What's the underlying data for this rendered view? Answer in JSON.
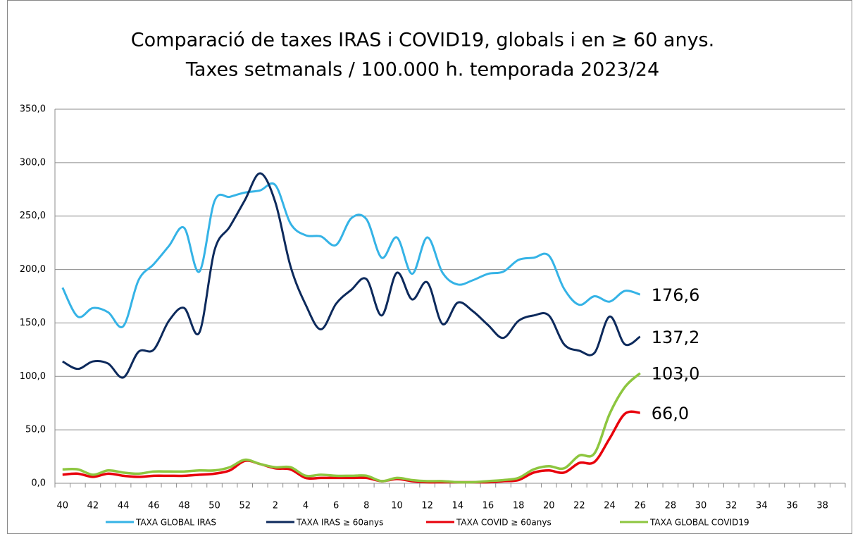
{
  "chart_data": {
    "type": "line",
    "title": "Comparació de taxes IRAS i COVID19, globals i en ≥ 60 anys.",
    "subtitle": "Taxes setmanals / 100.000 h. temporada 2023/24",
    "categories": [
      "40",
      null,
      "42",
      null,
      "44",
      null,
      "46",
      null,
      "48",
      null,
      "50",
      null,
      "52",
      null,
      "2",
      null,
      "4",
      null,
      "6",
      null,
      "8",
      null,
      "10",
      null,
      "12",
      null,
      "14",
      null,
      "16",
      null,
      "18",
      null,
      "20",
      null,
      "22",
      null,
      "24",
      null,
      "26",
      null,
      "28",
      null,
      "30",
      null,
      "32",
      null,
      "34",
      null,
      "36",
      null,
      "38",
      null
    ],
    "ylim": [
      0,
      350
    ],
    "yticks": [
      {
        "value": 0,
        "label": "0,0"
      },
      {
        "value": 50,
        "label": "50,0"
      },
      {
        "value": 100,
        "label": "100,0"
      },
      {
        "value": 150,
        "label": "150,0"
      },
      {
        "value": 200,
        "label": "200,0"
      },
      {
        "value": 250,
        "label": "250,0"
      },
      {
        "value": 300,
        "label": "300,0"
      },
      {
        "value": 350,
        "label": "350,0"
      }
    ],
    "grid": true,
    "legend": "bottom",
    "series": [
      {
        "name": "TAXA GLOBAL IRAS",
        "color": "#35b3e6",
        "values": [
          183,
          156,
          164,
          160,
          147,
          190,
          205,
          222,
          239,
          198,
          264,
          268,
          272,
          274,
          279,
          243,
          232,
          231,
          223,
          248,
          247,
          211,
          230,
          196,
          230,
          197,
          186,
          190,
          196,
          198,
          209,
          211,
          213,
          182,
          167,
          175,
          170,
          180,
          176.6,
          null,
          null,
          null,
          null,
          null,
          null,
          null,
          null,
          null,
          null,
          null,
          null,
          null
        ],
        "value_labels": [
          null,
          null,
          null,
          null,
          null,
          null,
          null,
          null,
          null,
          null,
          null,
          null,
          null,
          null,
          null,
          null,
          null,
          null,
          null,
          null,
          null,
          null,
          null,
          null,
          null,
          null,
          null,
          null,
          null,
          null,
          null,
          null,
          null,
          null,
          null,
          null,
          null,
          null,
          "176,6",
          null,
          null,
          null,
          null,
          null,
          null,
          null,
          null,
          null,
          null,
          null,
          null,
          null
        ]
      },
      {
        "name": "TAXA  IRAS ≥ 60anys",
        "color": "#0d2a5c",
        "values": [
          114,
          107,
          114,
          112,
          99,
          123,
          125,
          152,
          164,
          141,
          218,
          240,
          265,
          290,
          263,
          203,
          167,
          144,
          168,
          181,
          191,
          157,
          197,
          172,
          188,
          149,
          169,
          161,
          148,
          136,
          152,
          157,
          157,
          130,
          124,
          122,
          156,
          130,
          137.2,
          null,
          null,
          null,
          null,
          null,
          null,
          null,
          null,
          null,
          null,
          null,
          null,
          null
        ],
        "value_labels": [
          null,
          null,
          null,
          null,
          null,
          null,
          null,
          null,
          null,
          null,
          null,
          null,
          null,
          null,
          null,
          null,
          null,
          null,
          null,
          null,
          null,
          null,
          null,
          null,
          null,
          null,
          null,
          null,
          null,
          null,
          null,
          null,
          null,
          null,
          null,
          null,
          null,
          null,
          "137,2",
          null,
          null,
          null,
          null,
          null,
          null,
          null,
          null,
          null,
          null,
          null,
          null,
          null
        ]
      },
      {
        "name": "TAXA COVID ≥ 60anys",
        "color": "#e8000b",
        "values": [
          8,
          9,
          6,
          9,
          7,
          6,
          7,
          7,
          7,
          8,
          9,
          12,
          21,
          18,
          14,
          13,
          5,
          5,
          5,
          5,
          5,
          2,
          4,
          2,
          1,
          1,
          1,
          1,
          1,
          2,
          3,
          10,
          12,
          10,
          19,
          20,
          42,
          65,
          66.0,
          null,
          null,
          null,
          null,
          null,
          null,
          null,
          null,
          null,
          null,
          null,
          null,
          null
        ],
        "value_labels": [
          null,
          null,
          null,
          null,
          null,
          null,
          null,
          null,
          null,
          null,
          null,
          null,
          null,
          null,
          null,
          null,
          null,
          null,
          null,
          null,
          null,
          null,
          null,
          null,
          null,
          null,
          null,
          null,
          null,
          null,
          null,
          null,
          null,
          null,
          null,
          null,
          null,
          null,
          "66,0",
          null,
          null,
          null,
          null,
          null,
          null,
          null,
          null,
          null,
          null,
          null,
          null,
          null
        ]
      },
      {
        "name": "TAXA GLOBAL COVID19",
        "color": "#8dc63f",
        "values": [
          13,
          13,
          8,
          12,
          10,
          9,
          11,
          11,
          11,
          12,
          12,
          15,
          22,
          18,
          15,
          15,
          7,
          8,
          7,
          7,
          7,
          2,
          5,
          3,
          2,
          2,
          1,
          1,
          2,
          3,
          5,
          13,
          16,
          14,
          26,
          28,
          65,
          90,
          103.0,
          null,
          null,
          null,
          null,
          null,
          null,
          null,
          null,
          null,
          null,
          null,
          null,
          null
        ],
        "value_labels": [
          null,
          null,
          null,
          null,
          null,
          null,
          null,
          null,
          null,
          null,
          null,
          null,
          null,
          null,
          null,
          null,
          null,
          null,
          null,
          null,
          null,
          null,
          null,
          null,
          null,
          null,
          null,
          null,
          null,
          null,
          null,
          null,
          null,
          null,
          null,
          null,
          null,
          null,
          "103,0",
          null,
          null,
          null,
          null,
          null,
          null,
          null,
          null,
          null,
          null,
          null,
          null,
          null
        ]
      }
    ]
  }
}
